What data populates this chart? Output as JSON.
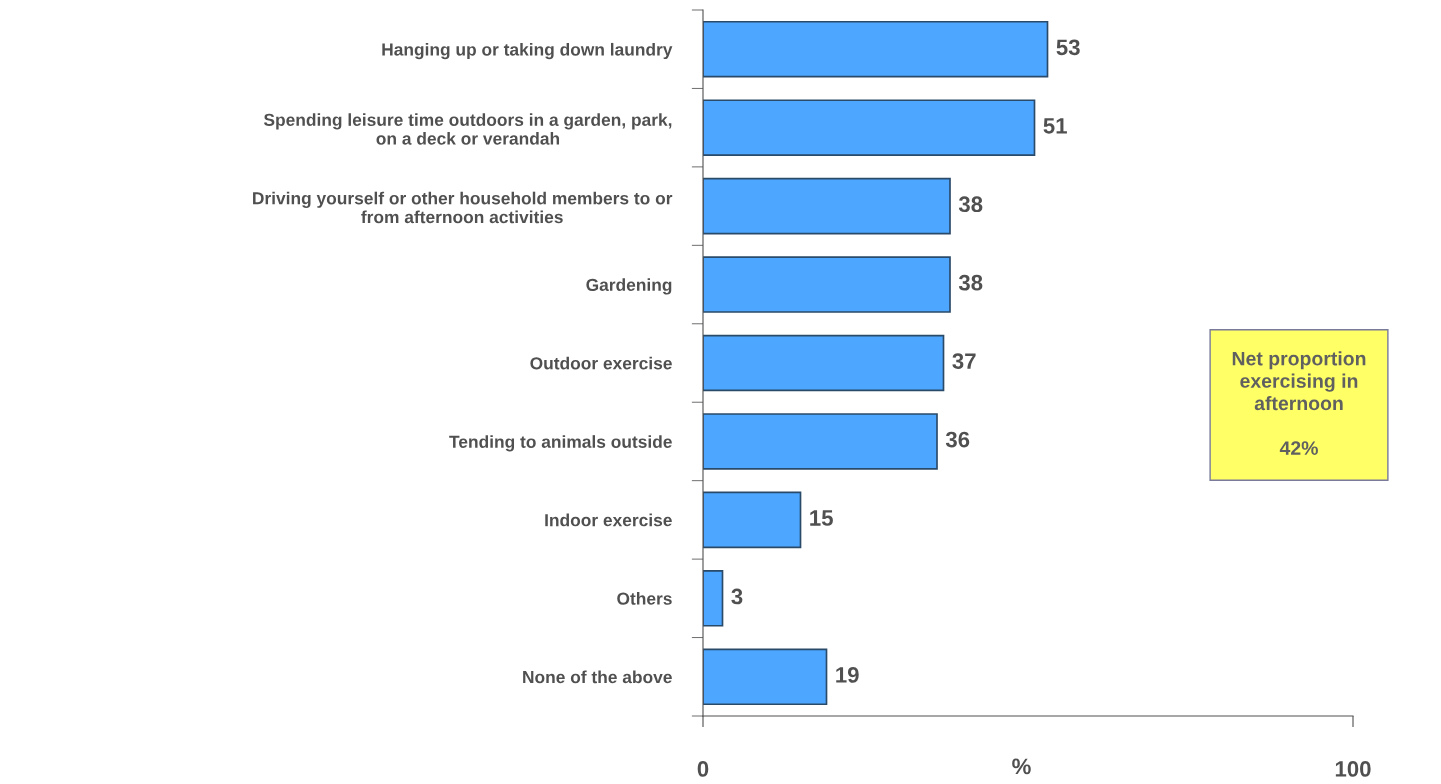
{
  "chart_data": {
    "type": "bar",
    "orientation": "horizontal",
    "categories": [
      "Hanging up or taking down laundry",
      "Spending leisure time outdoors in a garden, park,\non a deck or verandah",
      "Driving yourself or other household members to or\nfrom afternoon activities",
      "Gardening",
      "Outdoor exercise",
      "Tending to animals outside",
      "Indoor exercise",
      "Others",
      "None of the above"
    ],
    "values": [
      53,
      51,
      38,
      38,
      37,
      36,
      15,
      3,
      19
    ],
    "color": "#4da6ff",
    "xlim": [
      0,
      100
    ],
    "xticks": [
      0,
      100
    ],
    "xlabel": "%",
    "data_labels": true,
    "grid": false,
    "annotations": [
      "Net proportion\nexercising in\nafternoon\n\n42%"
    ]
  }
}
